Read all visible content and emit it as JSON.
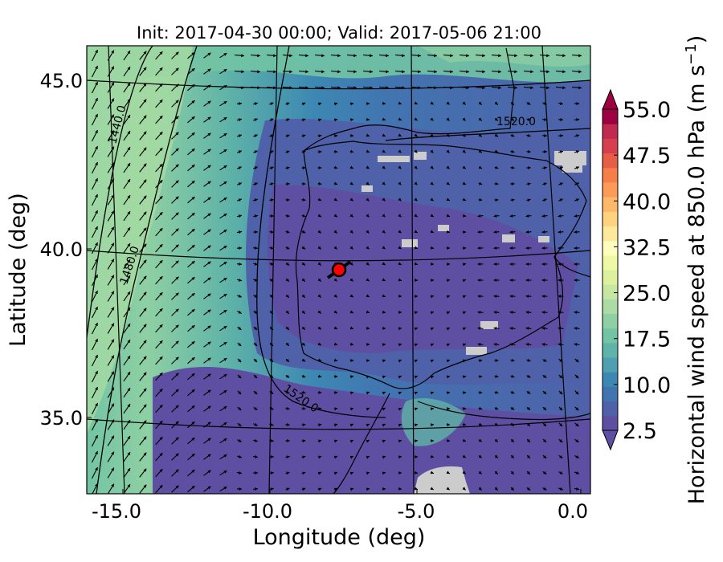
{
  "title": "Init: 2017-04-30 00:00; Valid: 2017-05-06 21:00",
  "x_axis": {
    "label": "Longitude (deg)",
    "ticks": [
      "-15.0",
      "-10.0",
      "-5.0",
      "0.0"
    ],
    "range": [
      -15.8,
      0.1
    ]
  },
  "y_axis": {
    "label": "Latitude (deg)",
    "ticks": [
      "45.0",
      "40.0",
      "35.0"
    ],
    "range": [
      32.8,
      46.2
    ]
  },
  "colorbar": {
    "label": "Horizontal wind speed at 850.0 hPa (m s",
    "label_exponent": "−1",
    "label_close": ")",
    "ticks": [
      "55.0",
      "47.5",
      "40.0",
      "32.5",
      "25.0",
      "17.5",
      "10.0",
      "2.5"
    ],
    "range": [
      2.5,
      55.0
    ],
    "colormap": "Spectral_r",
    "extend": "both",
    "colors": [
      "#5e4fa2",
      "#4f61a9",
      "#4274b0",
      "#3c88b3",
      "#4e9fb0",
      "#5fb3a8",
      "#72c4a4",
      "#8ed0a3",
      "#aadca3",
      "#c6e7a2",
      "#dcf09e",
      "#eff8a5",
      "#fffdbc",
      "#fee99a",
      "#fed27e",
      "#fdb86a",
      "#fc9b59",
      "#f67e4b",
      "#e75e46",
      "#d6404e",
      "#bf2a4f",
      "#9e0142"
    ]
  },
  "contour_labels": [
    "1440.0",
    "1480.0",
    "1520.0",
    "1520.0"
  ],
  "marker": {
    "label": "site-marker",
    "lon": -7.6,
    "lat": 39.4,
    "color": "#ff0000"
  },
  "legend_colors": {
    "land_mask": "#cccccc",
    "contours": "#000000"
  },
  "map_projection": "Lambert Conformal (curved graticule)"
}
